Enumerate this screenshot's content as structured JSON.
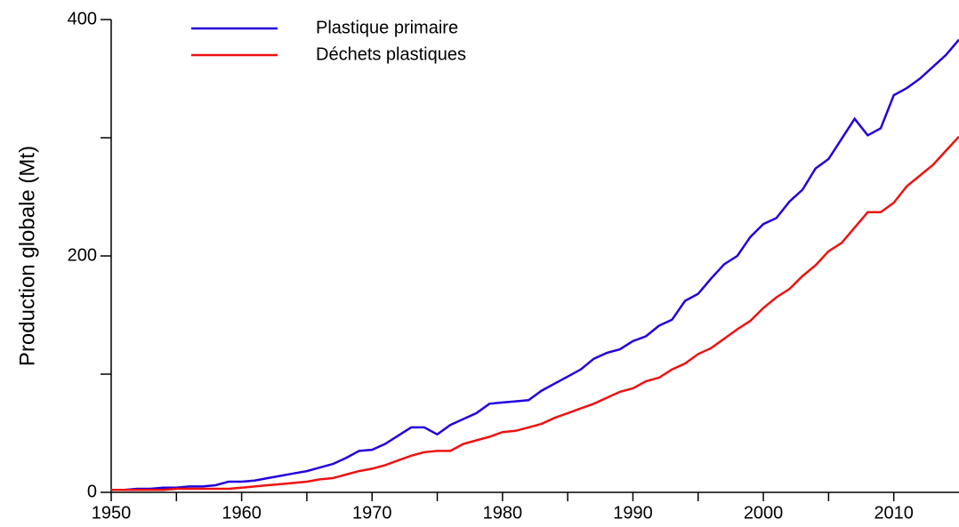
{
  "chart_data": {
    "type": "line",
    "ylabel": "Production globale (Mt)",
    "x": [
      1950,
      1951,
      1952,
      1953,
      1954,
      1955,
      1956,
      1957,
      1958,
      1959,
      1960,
      1961,
      1962,
      1963,
      1964,
      1965,
      1966,
      1967,
      1968,
      1969,
      1970,
      1971,
      1972,
      1973,
      1974,
      1975,
      1976,
      1977,
      1978,
      1979,
      1980,
      1981,
      1982,
      1983,
      1984,
      1985,
      1986,
      1987,
      1988,
      1989,
      1990,
      1991,
      1992,
      1993,
      1994,
      1995,
      1996,
      1997,
      1998,
      1999,
      2000,
      2001,
      2002,
      2003,
      2004,
      2005,
      2006,
      2007,
      2008,
      2009,
      2010,
      2011,
      2012,
      2013,
      2014,
      2015
    ],
    "series": [
      {
        "name": "Plastique primaire",
        "color": "#2200dd",
        "values": [
          2,
          2,
          3,
          3,
          4,
          4,
          5,
          5,
          6,
          9,
          9,
          10,
          12,
          14,
          16,
          18,
          21,
          24,
          29,
          35,
          36,
          41,
          48,
          55,
          55,
          49,
          57,
          62,
          67,
          75,
          76,
          77,
          78,
          86,
          92,
          98,
          104,
          113,
          118,
          121,
          128,
          132,
          141,
          146,
          162,
          168,
          181,
          193,
          200,
          216,
          227,
          232,
          246,
          256,
          274,
          282,
          299,
          316,
          302,
          308,
          336,
          342,
          350,
          360,
          370,
          383
        ]
      },
      {
        "name": "Déchets plastiques",
        "color": "#ee1111",
        "values": [
          2,
          2,
          2,
          2,
          2,
          3,
          3,
          3,
          3,
          3,
          4,
          5,
          6,
          7,
          8,
          9,
          11,
          12,
          15,
          18,
          20,
          23,
          27,
          31,
          34,
          35,
          35,
          41,
          44,
          47,
          51,
          52,
          55,
          58,
          63,
          67,
          71,
          75,
          80,
          85,
          88,
          94,
          97,
          104,
          109,
          117,
          122,
          130,
          138,
          145,
          156,
          165,
          172,
          183,
          192,
          204,
          211,
          224,
          237,
          237,
          245,
          259,
          268,
          277,
          289,
          301
        ]
      }
    ],
    "xlim": [
      1950,
      2015
    ],
    "xticks": [
      1950,
      1960,
      1970,
      1980,
      1990,
      2000,
      2010
    ],
    "xminorticks": [
      1955,
      1965,
      1975,
      1985,
      1995,
      2005
    ],
    "ylim": [
      0,
      400
    ],
    "yticks": [
      0,
      200,
      400
    ],
    "yminorticks": [
      100,
      300
    ],
    "grid": false,
    "legend": "upper left"
  }
}
